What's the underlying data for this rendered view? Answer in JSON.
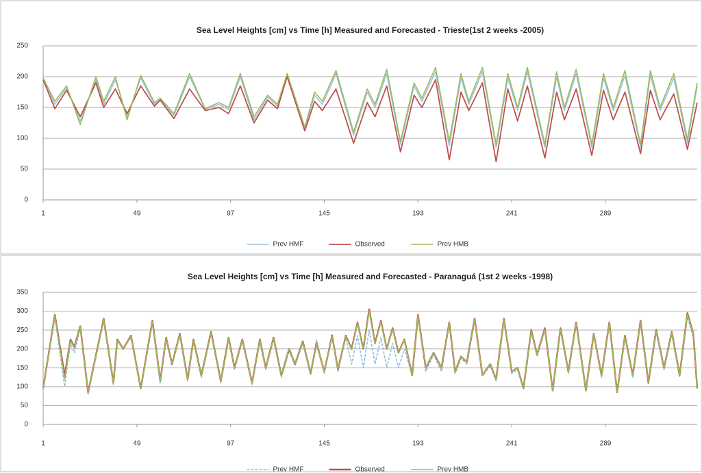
{
  "chart_data": [
    {
      "type": "line",
      "title": "Sea Level Heights [cm] vs Time [h] Measured and Forecasted - Trieste(1st 2 weeks -2005)",
      "x": [
        1,
        7,
        13,
        20,
        28,
        32,
        38,
        44,
        51,
        58,
        61,
        68,
        76,
        84,
        91,
        96,
        102,
        109,
        116,
        121,
        126,
        135,
        140,
        144,
        151,
        160,
        167,
        171,
        177,
        184,
        191,
        195,
        202,
        209,
        215,
        219,
        226,
        233,
        239,
        244,
        249,
        258,
        264,
        268,
        274,
        282,
        288,
        293,
        299,
        307,
        312,
        317,
        324,
        331,
        336
      ],
      "xlim": [
        1,
        336
      ],
      "xticks": [
        1,
        49,
        97,
        145,
        193,
        241,
        289
      ],
      "ylim": [
        0,
        250
      ],
      "yticks": [
        0,
        50,
        100,
        150,
        200,
        250
      ],
      "grid": true,
      "legend": "bottom",
      "series": [
        {
          "name": "Prev HMF",
          "color": "#9cc3e0",
          "values": [
            197,
            155,
            182,
            128,
            195,
            155,
            195,
            135,
            198,
            155,
            163,
            137,
            200,
            147,
            155,
            147,
            200,
            130,
            167,
            152,
            202,
            115,
            170,
            155,
            205,
            105,
            175,
            150,
            205,
            90,
            185,
            160,
            208,
            88,
            198,
            155,
            208,
            85,
            198,
            145,
            208,
            85,
            200,
            145,
            205,
            85,
            198,
            145,
            202,
            85,
            202,
            145,
            198,
            92,
            185
          ]
        },
        {
          "name": "Observed",
          "color": "#c0504d",
          "values": [
            195,
            148,
            178,
            135,
            190,
            150,
            180,
            140,
            185,
            152,
            162,
            132,
            180,
            145,
            150,
            140,
            185,
            125,
            162,
            148,
            200,
            112,
            160,
            145,
            180,
            92,
            158,
            135,
            185,
            78,
            170,
            150,
            195,
            65,
            175,
            145,
            190,
            62,
            180,
            128,
            185,
            68,
            175,
            130,
            180,
            72,
            178,
            130,
            175,
            75,
            178,
            130,
            172,
            82,
            158
          ]
        },
        {
          "name": "Prev HMB",
          "color": "#9bbb59",
          "values": [
            198,
            160,
            185,
            122,
            200,
            160,
            200,
            130,
            202,
            158,
            165,
            140,
            205,
            148,
            158,
            150,
            205,
            135,
            170,
            155,
            205,
            118,
            175,
            160,
            210,
            110,
            180,
            155,
            212,
            95,
            190,
            165,
            215,
            95,
            205,
            160,
            215,
            90,
            205,
            150,
            215,
            90,
            208,
            150,
            212,
            90,
            205,
            150,
            210,
            90,
            210,
            150,
            205,
            98,
            190
          ]
        }
      ]
    },
    {
      "type": "line",
      "title": "Sea Level Heights [cm] vs Time [h] Measured and Forecasted - Paranaguá (1st 2 weeks -1998)",
      "x": [
        1,
        7,
        12,
        15,
        17,
        20,
        24,
        32,
        37,
        39,
        42,
        46,
        51,
        57,
        61,
        64,
        67,
        71,
        75,
        78,
        82,
        87,
        92,
        96,
        99,
        103,
        108,
        112,
        115,
        119,
        123,
        127,
        130,
        134,
        138,
        141,
        145,
        149,
        152,
        156,
        159,
        162,
        165,
        168,
        171,
        174,
        177,
        180,
        183,
        186,
        190,
        193,
        197,
        201,
        205,
        209,
        212,
        215,
        218,
        222,
        226,
        230,
        233,
        237,
        241,
        244,
        247,
        251,
        254,
        258,
        262,
        266,
        270,
        274,
        279,
        283,
        287,
        291,
        295,
        299,
        303,
        307,
        311,
        315,
        319,
        323,
        327,
        331,
        334,
        336
      ],
      "xlim": [
        1,
        336
      ],
      "xticks": [
        1,
        49,
        97,
        145,
        193,
        241,
        289
      ],
      "ylim": [
        0,
        350
      ],
      "yticks": [
        0,
        50,
        100,
        150,
        200,
        250,
        300,
        350
      ],
      "grid": true,
      "legend": "bottom",
      "series": [
        {
          "name": "Prev HMF",
          "color": "#8fbcdc",
          "dashed": true,
          "values": [
            95,
            285,
            100,
            215,
            190,
            255,
            80,
            275,
            105,
            220,
            200,
            230,
            95,
            270,
            110,
            225,
            155,
            235,
            115,
            220,
            125,
            240,
            110,
            225,
            145,
            220,
            105,
            220,
            145,
            225,
            125,
            195,
            155,
            215,
            130,
            225,
            135,
            240,
            140,
            230,
            160,
            235,
            150,
            250,
            160,
            230,
            150,
            215,
            150,
            200,
            130,
            285,
            140,
            185,
            140,
            265,
            135,
            175,
            160,
            275,
            130,
            155,
            115,
            275,
            135,
            145,
            95,
            245,
            180,
            250,
            90,
            250,
            135,
            265,
            90,
            235,
            125,
            265,
            85,
            230,
            125,
            270,
            105,
            245,
            145,
            240,
            125,
            285,
            230,
            95
          ]
        },
        {
          "name": "Observed",
          "color": "#c0504d",
          "values": [
            95,
            290,
            130,
            225,
            205,
            260,
            85,
            280,
            110,
            225,
            200,
            235,
            95,
            275,
            115,
            230,
            160,
            240,
            120,
            225,
            130,
            245,
            115,
            230,
            150,
            225,
            110,
            225,
            150,
            230,
            130,
            200,
            160,
            220,
            135,
            215,
            140,
            235,
            145,
            235,
            200,
            270,
            200,
            305,
            215,
            275,
            200,
            255,
            190,
            225,
            130,
            290,
            150,
            190,
            150,
            270,
            140,
            180,
            165,
            280,
            130,
            160,
            120,
            280,
            140,
            150,
            95,
            250,
            185,
            255,
            90,
            255,
            140,
            270,
            90,
            240,
            130,
            270,
            85,
            235,
            130,
            275,
            110,
            250,
            150,
            245,
            130,
            295,
            240,
            95
          ]
        },
        {
          "name": "Prev HMB",
          "color": "#9bbb59",
          "values": [
            95,
            288,
            120,
            222,
            203,
            258,
            85,
            278,
            110,
            223,
            200,
            233,
            95,
            273,
            115,
            228,
            160,
            238,
            120,
            223,
            130,
            243,
            115,
            228,
            150,
            223,
            110,
            223,
            150,
            228,
            130,
            200,
            160,
            218,
            135,
            215,
            140,
            233,
            145,
            233,
            198,
            268,
            200,
            300,
            213,
            273,
            200,
            253,
            190,
            223,
            130,
            288,
            150,
            190,
            150,
            268,
            140,
            180,
            165,
            278,
            130,
            160,
            120,
            278,
            140,
            150,
            95,
            248,
            185,
            253,
            90,
            253,
            140,
            268,
            90,
            238,
            130,
            268,
            85,
            233,
            130,
            273,
            110,
            248,
            150,
            243,
            130,
            292,
            238,
            95
          ]
        }
      ]
    }
  ]
}
